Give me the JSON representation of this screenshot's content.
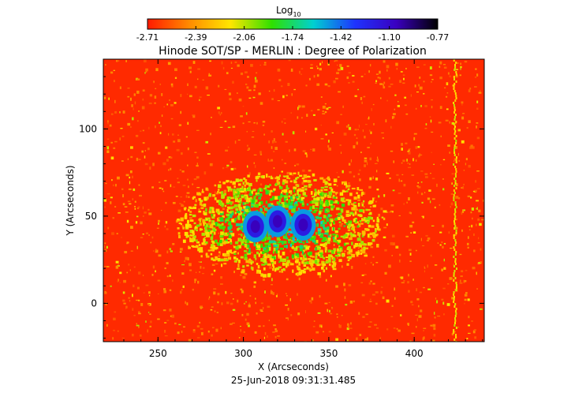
{
  "colorbar": {
    "label_main": "Log",
    "label_sub": "10",
    "tick_labels": [
      "-2.71",
      "-2.39",
      "-2.06",
      "-1.74",
      "-1.42",
      "-1.10",
      "-0.77"
    ],
    "range": [
      -2.71,
      -0.77
    ],
    "colors": [
      "#ff1a00",
      "#ff8a00",
      "#ffe600",
      "#2fe000",
      "#00d0d0",
      "#1e34ff",
      "#3a00c0",
      "#000000"
    ]
  },
  "chart_data": {
    "type": "heatmap",
    "title": "Hinode SOT/SP - MERLIN : Degree of Polarization",
    "xlabel": "X (Arcseconds)",
    "ylabel": "Y (Arcseconds)",
    "xlim": [
      218,
      441
    ],
    "ylim": [
      -22,
      140
    ],
    "x_ticks": [
      250,
      300,
      350,
      400
    ],
    "y_ticks": [
      0,
      50,
      100
    ],
    "x_tick_labels": [
      "250",
      "300",
      "350",
      "400"
    ],
    "y_tick_labels": [
      "0",
      "50",
      "100"
    ],
    "colorbar_label": "Log10",
    "value_range": [
      -2.71,
      -0.77
    ],
    "sunspot_umbrae": [
      {
        "x": 307,
        "y": 44
      },
      {
        "x": 320,
        "y": 47
      },
      {
        "x": 335,
        "y": 45
      }
    ],
    "timestamp": "25-Jun-2018 09:31:31.485"
  },
  "footer": {
    "timestamp": "25-Jun-2018 09:31:31.485"
  }
}
